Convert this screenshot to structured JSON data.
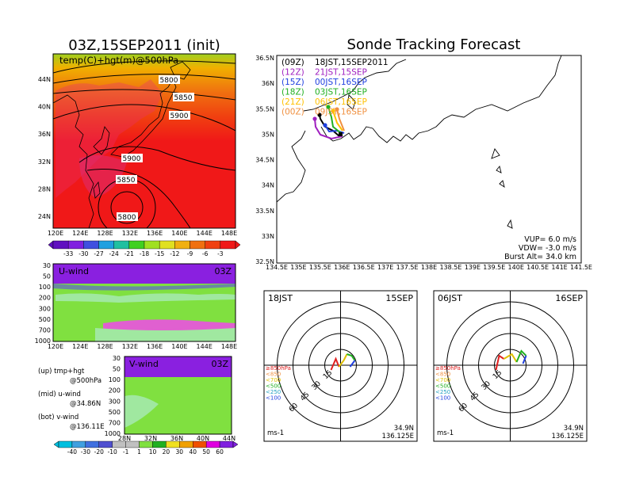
{
  "left": {
    "title": "03Z,15SEP2011 (init)",
    "top_panel": {
      "label": "temp(C)+hgt(m)@500hPa",
      "y_ticks": [
        "44N",
        "40N",
        "36N",
        "32N",
        "28N",
        "24N"
      ],
      "x_ticks": [
        "120E",
        "124E",
        "128E",
        "132E",
        "136E",
        "140E",
        "144E",
        "148E"
      ],
      "contours": [
        "5800",
        "5850",
        "5900",
        "5900",
        "5850",
        "5800"
      ],
      "colorbar": [
        "-33",
        "-30",
        "-27",
        "-24",
        "-21",
        "-18",
        "-15",
        "-12",
        "-9",
        "-6",
        "-3"
      ]
    },
    "u_panel": {
      "label": "U-wind",
      "time": "03Z",
      "y_ticks": [
        "30",
        "50",
        "100",
        "200",
        "300",
        "500",
        "700",
        "1000"
      ],
      "x_ticks": [
        "120E",
        "124E",
        "128E",
        "132E",
        "136E",
        "140E",
        "144E",
        "148E"
      ]
    },
    "v_panel": {
      "label": "V-wind",
      "time": "03Z",
      "y_ticks": [
        "30",
        "50",
        "100",
        "200",
        "300",
        "500",
        "700",
        "1000"
      ],
      "x_ticks": [
        "28N",
        "32N",
        "36N",
        "40N",
        "44N"
      ]
    },
    "legend_notes": [
      {
        "a": "(up)  tmp+hgt",
        "b": "@500hPa"
      },
      {
        "a": "(mid)  u-wind",
        "b": "@34.86N"
      },
      {
        "a": "(bot)  v-wind",
        "b": "@136.11E"
      }
    ],
    "wind_colorbar": [
      "-40",
      "-30",
      "-20",
      "-10",
      "-1",
      "1",
      "10",
      "20",
      "30",
      "40",
      "50",
      "60"
    ]
  },
  "right": {
    "title": "Sonde Tracking Forecast",
    "y_ticks": [
      "36.5N",
      "36N",
      "35.5N",
      "35N",
      "34.5N",
      "34N",
      "33.5N",
      "33N",
      "32.5N"
    ],
    "x_ticks": [
      "134.5E",
      "135E",
      "135.5E",
      "136E",
      "136.5E",
      "137E",
      "137.5E",
      "138E",
      "138.5E",
      "139E",
      "139.5E",
      "140E",
      "140.5E",
      "141E",
      "141.5E"
    ],
    "legend": [
      {
        "tag": "(09Z)",
        "text": "18JST,15SEP2011",
        "color": "#000000"
      },
      {
        "tag": "(12Z)",
        "text": "21JST,15SEP",
        "color": "#a020c0"
      },
      {
        "tag": "(15Z)",
        "text": "00JST,16SEP",
        "color": "#2040e0"
      },
      {
        "tag": "(18Z)",
        "text": "03JST,16SEP",
        "color": "#20b020"
      },
      {
        "tag": "(21Z)",
        "text": "06JST,16SEP",
        "color": "#ffc000"
      },
      {
        "tag": "(00Z)",
        "text": "09JST,16SEP",
        "color": "#f09040"
      }
    ],
    "params": [
      "VUP=  6.0  m/s",
      "VDW= -3.0  m/s",
      "Burst Alt=  34.0  km"
    ]
  },
  "hodographs": [
    {
      "time": "18JST",
      "date": "15SEP",
      "rings": [
        "15",
        "30",
        "45",
        "60"
      ],
      "unit": "ms-1",
      "lat": "34.9N",
      "lon": "136.125E"
    },
    {
      "time": "06JST",
      "date": "16SEP",
      "rings": [
        "15",
        "30",
        "45",
        "60"
      ],
      "unit": "ms-1",
      "lat": "34.9N",
      "lon": "136.125E"
    }
  ],
  "level_legend": [
    {
      "text": "≥850hPa",
      "color": "#e02020"
    },
    {
      "text": "<850",
      "color": "#f09040"
    },
    {
      "text": "<700",
      "color": "#e0c000"
    },
    {
      "text": "<500",
      "color": "#20b020"
    },
    {
      "text": "<250",
      "color": "#20a0c0"
    },
    {
      "text": "<100",
      "color": "#2040e0"
    }
  ]
}
